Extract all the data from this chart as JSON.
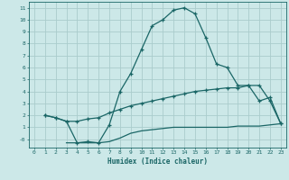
{
  "title": "",
  "xlabel": "Humidex (Indice chaleur)",
  "bg_color": "#cce8e8",
  "grid_color": "#aacccc",
  "line_color": "#1a6666",
  "xlim": [
    -0.5,
    23.5
  ],
  "ylim": [
    -0.7,
    11.5
  ],
  "xticks": [
    0,
    1,
    2,
    3,
    4,
    5,
    6,
    7,
    8,
    9,
    10,
    11,
    12,
    13,
    14,
    15,
    16,
    17,
    18,
    19,
    20,
    21,
    22,
    23
  ],
  "yticks": [
    0,
    1,
    2,
    3,
    4,
    5,
    6,
    7,
    8,
    9,
    10,
    11
  ],
  "line1_x": [
    1,
    2,
    3,
    4,
    5,
    6,
    7,
    8,
    9,
    10,
    11,
    12,
    13,
    14,
    15,
    16,
    17,
    18,
    19,
    20,
    21,
    22,
    23
  ],
  "line1_y": [
    2.0,
    1.8,
    1.5,
    -0.3,
    -0.2,
    -0.3,
    1.2,
    4.0,
    5.5,
    7.5,
    9.5,
    10.0,
    10.8,
    11.0,
    10.5,
    8.5,
    6.3,
    6.0,
    4.5,
    4.5,
    3.2,
    3.5,
    1.3
  ],
  "line2_x": [
    1,
    2,
    3,
    4,
    5,
    6,
    7,
    8,
    9,
    10,
    11,
    12,
    13,
    14,
    15,
    16,
    17,
    18,
    19,
    20,
    21,
    22,
    23
  ],
  "line2_y": [
    2.0,
    1.8,
    1.5,
    1.5,
    1.7,
    1.8,
    2.2,
    2.5,
    2.8,
    3.0,
    3.2,
    3.4,
    3.6,
    3.8,
    4.0,
    4.1,
    4.2,
    4.3,
    4.3,
    4.5,
    4.5,
    3.2,
    1.3
  ],
  "line3_x": [
    3,
    4,
    5,
    6,
    7,
    8,
    9,
    10,
    11,
    12,
    13,
    14,
    15,
    16,
    17,
    18,
    19,
    20,
    21,
    22,
    23
  ],
  "line3_y": [
    -0.3,
    -0.3,
    -0.3,
    -0.3,
    -0.2,
    0.1,
    0.5,
    0.7,
    0.8,
    0.9,
    1.0,
    1.0,
    1.0,
    1.0,
    1.0,
    1.0,
    1.1,
    1.1,
    1.1,
    1.2,
    1.3
  ],
  "ytick_label": [
    "-0",
    "1",
    "2",
    "3",
    "4",
    "5",
    "6",
    "7",
    "8",
    "9",
    "10",
    "11"
  ]
}
